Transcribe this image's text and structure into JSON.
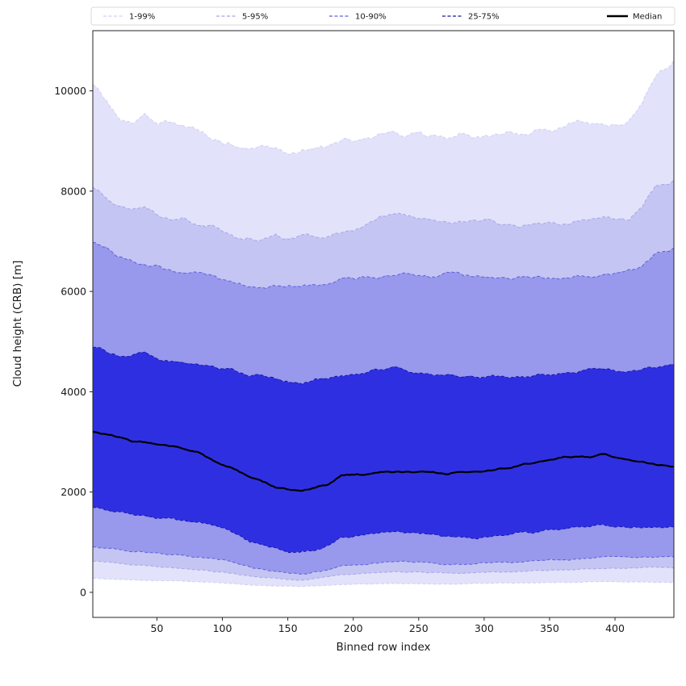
{
  "chart_data": {
    "type": "area",
    "title": "",
    "xlabel": "Binned row index",
    "ylabel": "Cloud height (CRB) [m]",
    "xlim": [
      1,
      445
    ],
    "ylim": [
      -500,
      11200
    ],
    "xticks": [
      50,
      100,
      150,
      200,
      250,
      300,
      350,
      400
    ],
    "yticks": [
      0,
      2000,
      4000,
      6000,
      8000,
      10000
    ],
    "grid": false,
    "legend_position": "top",
    "x": [
      1,
      11,
      21,
      31,
      41,
      51,
      61,
      71,
      81,
      91,
      101,
      111,
      121,
      131,
      141,
      151,
      161,
      171,
      181,
      191,
      201,
      211,
      221,
      231,
      241,
      251,
      261,
      271,
      281,
      291,
      301,
      311,
      321,
      331,
      341,
      351,
      361,
      371,
      381,
      391,
      401,
      411,
      421,
      431,
      445
    ],
    "series": {
      "p1": [
        280,
        270,
        260,
        250,
        240,
        235,
        230,
        220,
        210,
        200,
        185,
        165,
        150,
        140,
        130,
        120,
        120,
        130,
        140,
        155,
        160,
        165,
        170,
        175,
        175,
        172,
        170,
        168,
        170,
        172,
        178,
        182,
        185,
        190,
        192,
        196,
        200,
        205,
        210,
        215,
        212,
        208,
        205,
        202,
        200
      ],
      "p5": [
        620,
        600,
        580,
        550,
        530,
        510,
        490,
        470,
        450,
        430,
        400,
        360,
        320,
        290,
        270,
        250,
        250,
        280,
        310,
        350,
        370,
        380,
        400,
        410,
        400,
        400,
        390,
        380,
        380,
        390,
        400,
        410,
        410,
        420,
        430,
        440,
        450,
        460,
        470,
        480,
        480,
        480,
        490,
        500,
        500
      ],
      "p10": [
        900,
        880,
        850,
        820,
        800,
        780,
        750,
        730,
        700,
        680,
        650,
        570,
        500,
        450,
        420,
        380,
        360,
        400,
        450,
        520,
        550,
        570,
        600,
        610,
        600,
        600,
        580,
        560,
        560,
        570,
        590,
        600,
        600,
        620,
        630,
        650,
        650,
        660,
        680,
        700,
        700,
        690,
        700,
        710,
        700
      ],
      "p25": [
        1700,
        1650,
        1600,
        1550,
        1500,
        1480,
        1450,
        1420,
        1400,
        1350,
        1300,
        1150,
        1000,
        950,
        870,
        800,
        820,
        850,
        950,
        1100,
        1120,
        1150,
        1200,
        1200,
        1200,
        1180,
        1150,
        1120,
        1100,
        1100,
        1100,
        1150,
        1150,
        1200,
        1200,
        1250,
        1280,
        1300,
        1320,
        1350,
        1320,
        1300,
        1300,
        1320,
        1300
      ],
      "median": [
        3200,
        3150,
        3100,
        3000,
        3000,
        2950,
        2900,
        2850,
        2800,
        2650,
        2550,
        2450,
        2300,
        2200,
        2100,
        2050,
        2050,
        2100,
        2150,
        2350,
        2350,
        2350,
        2400,
        2400,
        2400,
        2400,
        2400,
        2350,
        2400,
        2400,
        2400,
        2450,
        2500,
        2550,
        2600,
        2650,
        2700,
        2700,
        2700,
        2750,
        2700,
        2650,
        2600,
        2550,
        2500
      ],
      "p75": [
        4900,
        4800,
        4700,
        4750,
        4800,
        4650,
        4600,
        4550,
        4550,
        4500,
        4450,
        4400,
        4350,
        4350,
        4250,
        4200,
        4150,
        4250,
        4250,
        4300,
        4350,
        4400,
        4450,
        4500,
        4400,
        4400,
        4350,
        4350,
        4300,
        4300,
        4300,
        4300,
        4300,
        4300,
        4350,
        4350,
        4400,
        4400,
        4450,
        4450,
        4400,
        4400,
        4450,
        4500,
        4550
      ],
      "p90": [
        7000,
        6900,
        6700,
        6600,
        6550,
        6500,
        6400,
        6400,
        6350,
        6300,
        6200,
        6150,
        6100,
        6100,
        6100,
        6100,
        6100,
        6100,
        6150,
        6250,
        6250,
        6300,
        6300,
        6350,
        6350,
        6300,
        6300,
        6350,
        6350,
        6300,
        6300,
        6250,
        6250,
        6300,
        6300,
        6250,
        6250,
        6300,
        6300,
        6350,
        6350,
        6400,
        6500,
        6750,
        6850
      ],
      "p95": [
        8100,
        7900,
        7700,
        7600,
        7650,
        7500,
        7450,
        7500,
        7350,
        7300,
        7200,
        7100,
        7100,
        7050,
        7100,
        7050,
        7100,
        7100,
        7150,
        7200,
        7250,
        7350,
        7500,
        7550,
        7500,
        7450,
        7400,
        7350,
        7400,
        7400,
        7400,
        7350,
        7300,
        7300,
        7350,
        7350,
        7350,
        7400,
        7450,
        7500,
        7450,
        7450,
        7700,
        8100,
        8200
      ],
      "p99": [
        10100,
        9800,
        9500,
        9350,
        9500,
        9400,
        9350,
        9300,
        9200,
        9100,
        8950,
        8900,
        8850,
        8850,
        8800,
        8700,
        8800,
        8850,
        8900,
        9050,
        9000,
        9050,
        9100,
        9200,
        9100,
        9150,
        9100,
        9050,
        9150,
        9100,
        9100,
        9150,
        9200,
        9150,
        9250,
        9250,
        9300,
        9400,
        9300,
        9350,
        9300,
        9400,
        9800,
        10300,
        10600
      ]
    },
    "bands": [
      {
        "label": "1-99%",
        "lo": "p1",
        "hi": "p99",
        "fill": "#e2e2fa",
        "edge": "#cfcff5"
      },
      {
        "label": "5-95%",
        "lo": "p5",
        "hi": "p95",
        "fill": "#c5c5f3",
        "edge": "#a5a5ec"
      },
      {
        "label": "10-90%",
        "lo": "p10",
        "hi": "p90",
        "fill": "#9898ec",
        "edge": "#6060dd"
      },
      {
        "label": "25-75%",
        "lo": "p25",
        "hi": "p75",
        "fill": "#2f2fe2",
        "edge": "#1717a8"
      }
    ],
    "median": {
      "label": "Median",
      "color": "#000000",
      "width": 2.2
    }
  }
}
